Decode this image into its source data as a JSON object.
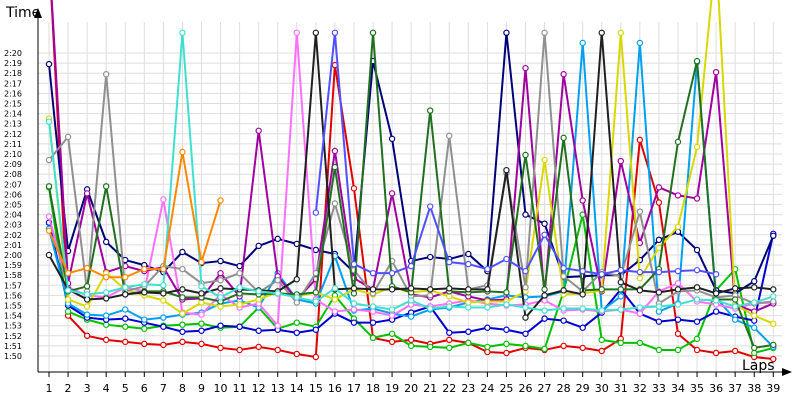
{
  "chart_data": {
    "type": "line",
    "title": "",
    "xlabel": "Laps",
    "ylabel": "Time",
    "xlim": [
      0.5,
      39.2
    ],
    "ylim_seconds": [
      108,
      142
    ],
    "x_tick_labels": [
      "1",
      "2",
      "3",
      "4",
      "5",
      "6",
      "7",
      "8",
      "9",
      "10",
      "11",
      "12",
      "13",
      "14",
      "15",
      "16",
      "17",
      "18",
      "19",
      "20",
      "21",
      "22",
      "23",
      "24",
      "25",
      "26",
      "27",
      "28",
      "29",
      "30",
      "31",
      "32",
      "33",
      "34",
      "35",
      "36",
      "37",
      "38",
      "39"
    ],
    "y_tick_labels": [
      "1:50",
      "1:51",
      "1:52",
      "1:53",
      "1:54",
      "1:55",
      "1:56",
      "1:57",
      "1:58",
      "1:59",
      "2:00",
      "2:01",
      "2:02",
      "2:03",
      "2:04",
      "2:05",
      "2:06",
      "2:07",
      "2:08",
      "2:09",
      "2:10",
      "2:11",
      "2:12",
      "2:13",
      "2:14",
      "2:15",
      "2:16",
      "2:17",
      "2:18",
      "2:19",
      "2:20"
    ],
    "grid": true,
    "legend": "none",
    "series": [
      {
        "color": "#e00000",
        "x": [
          1,
          2,
          3,
          4,
          5,
          6,
          7,
          8,
          9,
          10,
          11,
          12,
          13,
          14,
          15,
          16,
          17,
          18,
          19,
          20,
          21,
          22,
          23,
          24,
          25,
          26,
          27,
          28,
          29,
          30,
          31,
          32,
          33,
          34,
          35,
          36,
          37,
          38,
          39
        ],
        "y": [
          150,
          114,
          112,
          111.6,
          111.4,
          111.2,
          111.1,
          111.4,
          111.2,
          110.8,
          110.6,
          110.9,
          110.6,
          110.2,
          109.9,
          138.8,
          126.6,
          111.8,
          111.4,
          111.6,
          111.2,
          111.6,
          111.3,
          110.4,
          110.3,
          110.8,
          110.6,
          111,
          110.8,
          110.5,
          111.7,
          131.4,
          125.2,
          112.2,
          110.6,
          110.3,
          110.5,
          109.9,
          109.7
        ]
      },
      {
        "color": "#00c000",
        "x": [
          1,
          2,
          3,
          4,
          5,
          6,
          7,
          8,
          9,
          10,
          11,
          12,
          13,
          14,
          15,
          16,
          17,
          18,
          19,
          20,
          21,
          22,
          23,
          24,
          25,
          26,
          27,
          28,
          29,
          30,
          31,
          32,
          33,
          34,
          35,
          36,
          37,
          38,
          39
        ],
        "y": [
          126.7,
          114.4,
          113.6,
          113.1,
          112.9,
          112.7,
          113,
          113.1,
          113.2,
          112.8,
          112.9,
          114.8,
          112.7,
          113.3,
          112.9,
          116,
          113.7,
          111.8,
          112.2,
          111,
          110.9,
          110.8,
          111.3,
          110.9,
          111.2,
          111,
          110.7,
          116.4,
          124,
          111.6,
          111.3,
          111.3,
          110.6,
          110.6,
          111.7,
          116.5,
          118.6,
          110.3,
          110.8
        ]
      },
      {
        "color": "#0000d0",
        "x": [
          1,
          2,
          3,
          4,
          5,
          6,
          7,
          8,
          9,
          10,
          11,
          12,
          13,
          14,
          15,
          16,
          17,
          18,
          19,
          20,
          21,
          22,
          23,
          24,
          25,
          26,
          27,
          28,
          29,
          30,
          31,
          32,
          33,
          34,
          35,
          36,
          37,
          38,
          39
        ],
        "y": [
          123.2,
          115,
          113.8,
          113.6,
          113.7,
          113.3,
          112.9,
          112.4,
          112.5,
          113,
          112.9,
          112.5,
          112.6,
          112.3,
          112.6,
          114.2,
          113.3,
          113.3,
          113.6,
          114.3,
          114.9,
          112.3,
          112.4,
          112.8,
          112.6,
          112.2,
          113.7,
          113.5,
          112.8,
          114.3,
          116.6,
          114.2,
          113.4,
          113.6,
          113.4,
          114.4,
          113.9,
          113.5,
          122.1
        ]
      },
      {
        "color": "#00007a",
        "x": [
          1,
          2,
          3,
          4,
          5,
          6,
          7,
          8,
          9,
          10,
          11,
          12,
          13,
          14,
          15,
          16,
          17,
          18,
          19,
          20,
          21,
          22,
          23,
          24,
          25,
          26,
          27,
          28,
          29,
          30,
          31,
          32,
          33,
          34,
          35,
          36,
          37,
          38,
          39
        ],
        "y": [
          138.9,
          120.4,
          126.5,
          121.3,
          119.5,
          119,
          118.3,
          120.3,
          119.2,
          119.4,
          118.9,
          120.9,
          121.6,
          121.1,
          120.5,
          120.1,
          118.3,
          139.2,
          131.5,
          119.4,
          119.8,
          119.6,
          120.1,
          118.4,
          142,
          124,
          123.1,
          117.8,
          117.9,
          118,
          118,
          119.5,
          121.5,
          122.3,
          120.5,
          116.5,
          116.2,
          117.4,
          121.9
        ]
      },
      {
        "color": "#00a0f0",
        "x": [
          1,
          2,
          3,
          4,
          5,
          6,
          7,
          8,
          9,
          10,
          11,
          12,
          13,
          14,
          15,
          16,
          17,
          18,
          19,
          20,
          21,
          22,
          23,
          24,
          25,
          26,
          27,
          28,
          29,
          30,
          31,
          32,
          33,
          34,
          35,
          36,
          37,
          38,
          39
        ],
        "y": [
          122.6,
          115.2,
          114.1,
          114,
          114.6,
          113.6,
          113.8,
          114.1,
          114.3,
          115.2,
          115.5,
          114.8,
          118.2,
          115.6,
          115.2,
          119.9,
          114.5,
          114.7,
          114.2,
          113.9,
          114.6,
          114.8,
          115.3,
          115.6,
          116,
          115.8,
          115.9,
          116.4,
          141,
          114.5,
          115.9,
          141,
          114.4,
          115.2,
          139.1,
          115.8,
          113.6,
          112.8,
          110.9
        ]
      },
      {
        "color": "#ff70ff",
        "x": [
          1,
          2,
          3,
          4,
          5,
          6,
          7,
          8,
          9,
          10,
          11,
          12,
          13,
          14,
          15,
          16,
          17,
          18,
          19,
          20,
          21,
          22,
          23,
          24,
          25,
          26,
          27,
          28,
          29,
          30,
          31,
          32,
          33,
          34,
          35,
          36,
          37,
          38,
          39
        ],
        "y": [
          123.8,
          116.8,
          116,
          115.8,
          116.8,
          116.4,
          125.5,
          114.3,
          114.1,
          116.1,
          114.8,
          115.2,
          113,
          142,
          115.6,
          114.4,
          114.6,
          114.4,
          114,
          115.1,
          114.9,
          115.2,
          115.5,
          115.2,
          115,
          115.1,
          115.5,
          114.5,
          114.6,
          114.4,
          114.6,
          114.2,
          116.4,
          117.2,
          115.4,
          115.1,
          114.7,
          115.2,
          115.3
        ]
      },
      {
        "color": "#a000a0",
        "x": [
          1,
          2,
          3,
          4,
          5,
          6,
          7,
          8,
          9,
          10,
          11,
          12,
          13,
          14,
          15,
          16,
          17,
          18,
          19,
          20,
          21,
          22,
          23,
          24,
          25,
          26,
          27,
          28,
          29,
          30,
          31,
          32,
          33,
          34,
          35,
          36,
          37,
          38,
          39
        ],
        "y": [
          150,
          117.2,
          126.1,
          118.3,
          118.9,
          118.4,
          118.8,
          115.6,
          115.7,
          118.2,
          115.9,
          132.3,
          117.9,
          115.6,
          117.6,
          130.3,
          117.7,
          116.6,
          126.1,
          116.1,
          115.8,
          116.4,
          115.9,
          115.5,
          115.6,
          138.5,
          116,
          137.9,
          125.4,
          116.4,
          129.3,
          121.2,
          126.7,
          125.9,
          125.6,
          138.1,
          115.1,
          114.4,
          115.2
        ]
      },
      {
        "color": "#d8d800",
        "x": [
          1,
          2,
          3,
          4,
          5,
          6,
          7,
          8,
          9,
          10,
          11,
          12,
          13,
          14,
          15,
          16,
          17,
          18,
          19,
          20,
          21,
          22,
          23,
          24,
          25,
          26,
          27,
          28,
          29,
          30,
          31,
          32,
          33,
          34,
          35,
          36,
          37,
          38,
          39
        ],
        "y": [
          133.5,
          115.6,
          114.9,
          118.2,
          116.6,
          116,
          115.5,
          114.2,
          115.3,
          114.9,
          115.1,
          115.6,
          116.3,
          115.9,
          116.3,
          115.6,
          116.6,
          116.1,
          116.8,
          116.3,
          116.5,
          115.9,
          115.3,
          115.4,
          115.4,
          116.4,
          129.4,
          116.1,
          116.2,
          116.5,
          142,
          117.7,
          120.7,
          122.8,
          130.7,
          150,
          115.1,
          114,
          113.2
        ]
      },
      {
        "color": "#909090",
        "x": [
          1,
          2,
          3,
          4,
          5,
          6,
          7,
          8,
          9,
          10,
          11,
          12,
          13,
          14,
          15,
          16,
          17,
          18,
          19,
          20,
          21,
          22,
          23,
          24,
          25,
          26,
          27,
          28,
          29,
          30,
          31,
          32,
          33,
          34,
          35,
          36,
          37,
          38,
          39
        ],
        "y": [
          129.4,
          131.7,
          116.4,
          137.9,
          116.4,
          116.9,
          118.9,
          118.6,
          117.2,
          117.5,
          118.2,
          116.3,
          117.5,
          115.3,
          118.2,
          125.1,
          118.5,
          116.2,
          119.4,
          115.9,
          116,
          131.8,
          116.6,
          117,
          128.1,
          116.8,
          142,
          117.9,
          116.4,
          118.3,
          117.9,
          124.3,
          115.2,
          116.4,
          116.5,
          115.8,
          116,
          115.2,
          115.4
        ]
      },
      {
        "color": "#207020",
        "x": [
          1,
          2,
          3,
          4,
          5,
          6,
          7,
          8,
          9,
          10,
          11,
          12,
          13,
          14,
          15,
          16,
          17,
          18,
          19,
          20,
          21,
          22,
          23,
          24,
          25,
          26,
          27,
          28,
          29,
          30,
          31,
          32,
          33,
          34,
          35,
          36,
          37,
          38,
          39
        ],
        "y": [
          126.8,
          116.4,
          116.9,
          126.8,
          116.1,
          116.4,
          116.4,
          115.8,
          115.8,
          115.4,
          116.2,
          116.1,
          116.2,
          116.1,
          116.3,
          128.7,
          116.2,
          142,
          116.9,
          116.3,
          134.3,
          116.4,
          116.3,
          116.4,
          116.3,
          129.9,
          116.6,
          131.6,
          116.5,
          116.6,
          116.6,
          116.6,
          118.6,
          131.2,
          139.2,
          115.6,
          115.6,
          110.8,
          111.1
        ]
      },
      {
        "color": "#202020",
        "x": [
          1,
          2,
          3,
          4,
          5,
          6,
          7,
          8,
          9,
          10,
          11,
          12,
          13,
          14,
          15,
          16,
          17,
          18,
          19,
          20,
          21,
          22,
          23,
          24,
          25,
          26,
          27,
          28,
          29,
          30,
          31,
          32,
          33,
          34,
          35,
          36,
          37,
          38,
          39
        ],
        "y": [
          120,
          116.6,
          115.6,
          115.7,
          116.1,
          116.3,
          116.2,
          116.6,
          116.2,
          116.7,
          116.6,
          116.5,
          116.4,
          117.6,
          142,
          116.6,
          116.7,
          116.6,
          116.6,
          116.7,
          116.6,
          116.7,
          116.6,
          116.6,
          128.4,
          113.8,
          116,
          116.5,
          116.1,
          142,
          117.3,
          116.5,
          116.3,
          116.6,
          116.8,
          116.2,
          116.7,
          116.8,
          116.6
        ]
      },
      {
        "color": "#40e0d0",
        "x": [
          1,
          2,
          3,
          4,
          5,
          6,
          7,
          8,
          9,
          10,
          11,
          12,
          13,
          14,
          15,
          16,
          17,
          18,
          19,
          20,
          21,
          22,
          23,
          24,
          25,
          26,
          27,
          28,
          29,
          30,
          31,
          32,
          33,
          34,
          35,
          36,
          37,
          38,
          39
        ],
        "y": [
          133.2,
          116.5,
          116.1,
          116.3,
          116.8,
          117.1,
          117,
          142,
          116.9,
          115.8,
          116.8,
          116.4,
          116.2,
          115.8,
          115.4,
          116.7,
          115.2,
          114.9,
          114.6,
          115.5,
          114.7,
          114.9,
          114.8,
          114.8,
          115.1,
          114.8,
          114.5,
          114.7,
          114.7,
          114.5,
          114.6,
          114.8,
          114.9,
          115.1,
          115.6,
          115.5,
          114.9,
          115.3,
          115.9
        ]
      },
      {
        "color": "#ff8800",
        "x": [
          1,
          2,
          3,
          4,
          5,
          6,
          7,
          8,
          9,
          10
        ],
        "y": [
          122.4,
          118.2,
          118.7,
          117.8,
          117.8,
          118.6,
          118.6,
          130.2,
          119.3,
          125.4
        ]
      },
      {
        "color": "#5050ff",
        "x": [
          15,
          16,
          17,
          18,
          19,
          20,
          21,
          22,
          23,
          24,
          25,
          26,
          27,
          28,
          29,
          30,
          31,
          32,
          33,
          34,
          35,
          36
        ],
        "y": [
          124.2,
          142,
          119.1,
          118.2,
          118.2,
          118.9,
          124.8,
          119.3,
          119.1,
          118.6,
          119.6,
          118.4,
          122,
          118.7,
          118.4,
          118.1,
          118.5,
          118.3,
          118.3,
          118.4,
          118.5,
          118.1
        ]
      }
    ]
  }
}
